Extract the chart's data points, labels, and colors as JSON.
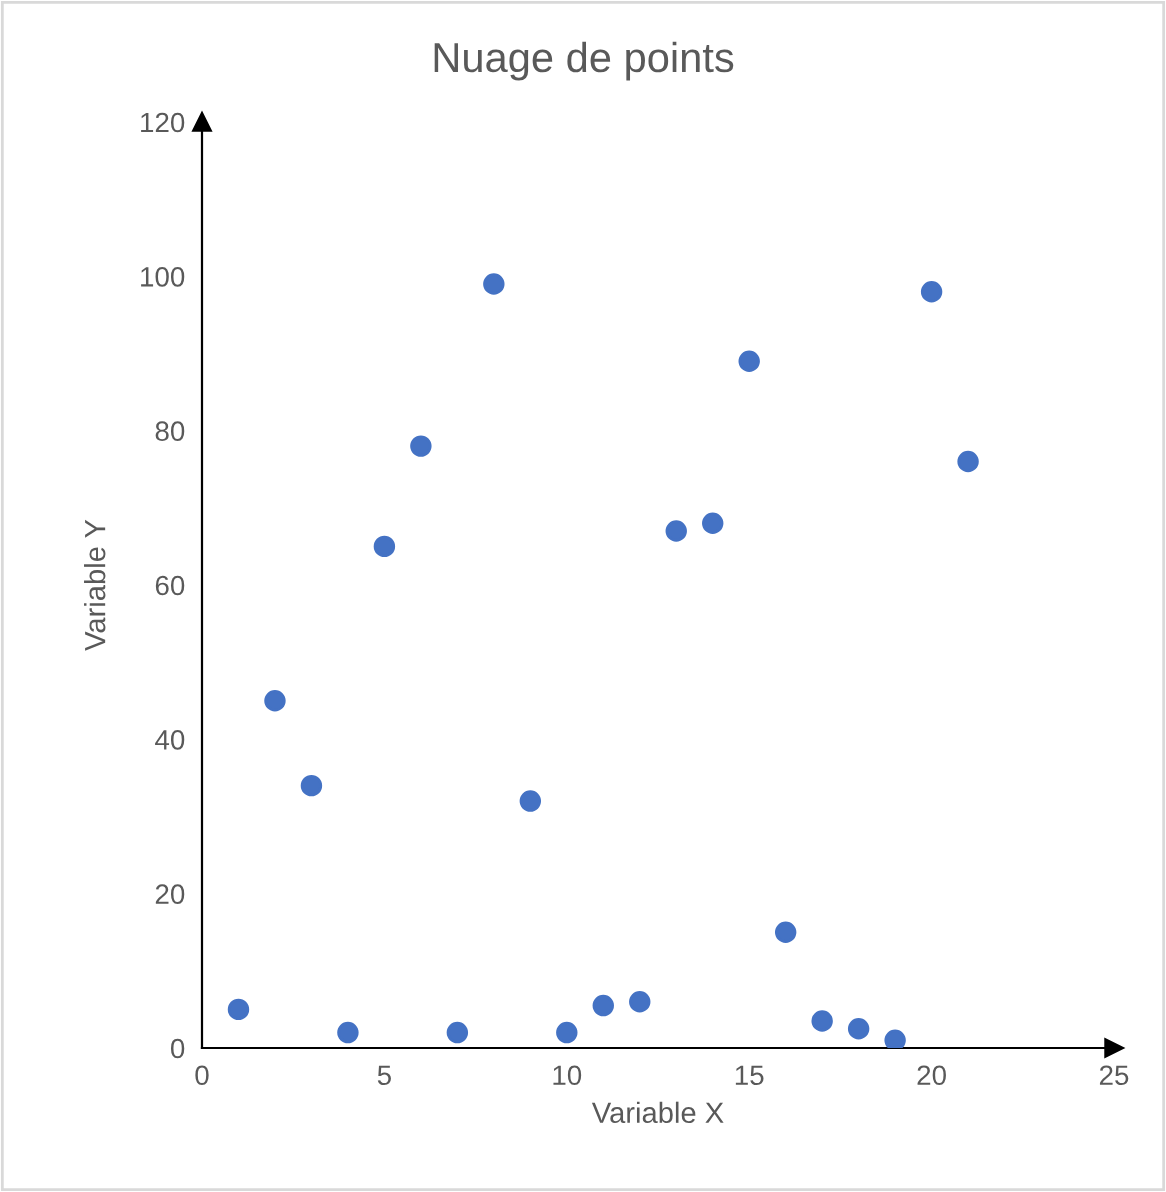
{
  "chart_data": {
    "type": "scatter",
    "title": "Nuage de points",
    "xlabel": "Variable X",
    "ylabel": "Variable Y",
    "x": [
      1,
      2,
      3,
      4,
      5,
      6,
      7,
      8,
      9,
      10,
      11,
      12,
      13,
      14,
      15,
      16,
      17,
      18,
      19,
      20,
      21
    ],
    "series": [
      {
        "color": "#4472c4",
        "values": [
          5,
          45,
          34,
          2,
          65,
          78,
          2,
          99,
          32,
          2,
          5.5,
          6,
          67,
          68,
          89,
          15,
          3.5,
          2.5,
          1,
          98,
          76
        ]
      }
    ],
    "xlim": [
      0,
      25
    ],
    "xticks": [
      0,
      5,
      10,
      15,
      20,
      25
    ],
    "ylim": [
      0,
      120
    ],
    "yticks": [
      0,
      20,
      40,
      60,
      80,
      100,
      120
    ],
    "marker": "circle",
    "grid": false,
    "legend": false
  }
}
